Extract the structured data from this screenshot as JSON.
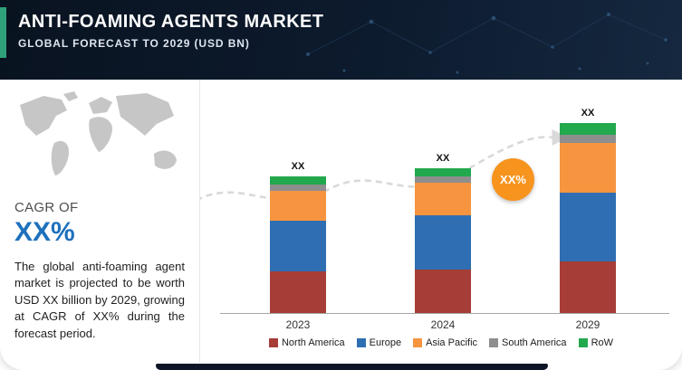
{
  "header": {
    "title": "ANTI-FOAMING AGENTS MARKET",
    "subtitle": "GLOBAL FORECAST TO 2029 (USD BN)"
  },
  "left_panel": {
    "cagr_label": "CAGR OF",
    "cagr_value": "XX%",
    "description": "The global anti-foaming agent market is projected to be worth USD XX billion by 2029, growing at CAGR of XX% during the forecast period."
  },
  "chart_data": {
    "type": "bar",
    "stacked": true,
    "title": "Anti-Foaming Agents Market, Global Forecast to 2029 (USD BN)",
    "value_unit": "USD BN",
    "categories": [
      "2023",
      "2024",
      "2029"
    ],
    "series": [
      {
        "name": "North America",
        "color": "#a63d36",
        "values": [
          46,
          48,
          57
        ]
      },
      {
        "name": "Europe",
        "color": "#2f6eb3",
        "values": [
          56,
          60,
          76
        ]
      },
      {
        "name": "Asia Pacific",
        "color": "#f69440",
        "values": [
          33,
          36,
          55
        ]
      },
      {
        "name": "South America",
        "color": "#8e8e8e",
        "values": [
          7,
          7,
          9
        ]
      },
      {
        "name": "RoW",
        "color": "#22a84d",
        "values": [
          9,
          9,
          13
        ]
      }
    ],
    "bar_labels": [
      "XX",
      "XX",
      "XX"
    ],
    "cagr_badge": "XX%",
    "legend_position": "bottom",
    "y_axis_shown": false,
    "values_note": "bar segment values masked as XX in source; numbers are relative heights"
  },
  "colors": {
    "header_bg": "#0d1b2e",
    "accent_teal": "#2fa27b",
    "cagr_blue": "#1d71bd",
    "badge_orange": "#f7941e",
    "trend_line": "#d9d9d9"
  }
}
